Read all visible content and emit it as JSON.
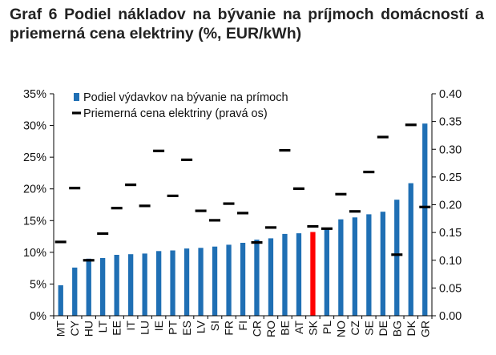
{
  "chart_data": {
    "type": "bar",
    "title": "Graf 6 Podiel nákladov na bývanie na príjmoch domácností a priemerná cena elektriny (%, EUR/kWh)",
    "categories": [
      "MT",
      "CY",
      "HU",
      "LT",
      "EE",
      "IT",
      "LU",
      "IE",
      "PT",
      "ES",
      "LV",
      "SI",
      "FR",
      "FI",
      "CR",
      "RO",
      "BE",
      "AT",
      "SK",
      "PL",
      "NO",
      "CZ",
      "SE",
      "DE",
      "BG",
      "DK",
      "GR"
    ],
    "series": [
      {
        "name": "Podiel výdavkov na bývanie na prímoch",
        "type": "bar",
        "axis": "left",
        "color": "#1f6fb4",
        "values": [
          4.8,
          7.6,
          9.0,
          9.1,
          9.6,
          9.7,
          9.8,
          10.2,
          10.3,
          10.6,
          10.7,
          10.9,
          11.2,
          11.5,
          12.0,
          12.2,
          12.9,
          13.0,
          13.2,
          13.9,
          15.2,
          15.5,
          16.0,
          16.4,
          18.3,
          20.9,
          30.3
        ]
      },
      {
        "name": "Priemerná cena elektriny (pravá os)",
        "type": "marker",
        "axis": "right",
        "color": "#000000",
        "values": [
          0.133,
          0.23,
          0.1,
          0.148,
          0.194,
          0.236,
          0.198,
          0.297,
          0.216,
          0.281,
          0.189,
          0.172,
          0.202,
          0.185,
          0.132,
          0.159,
          0.298,
          0.229,
          0.161,
          0.157,
          0.219,
          0.188,
          0.259,
          0.322,
          0.11,
          0.344,
          0.196
        ]
      }
    ],
    "highlight": {
      "category": "SK",
      "color": "#ff0000"
    },
    "y_left": {
      "min": 0,
      "max": 35,
      "ticks": [
        "0%",
        "5%",
        "10%",
        "15%",
        "20%",
        "25%",
        "30%",
        "35%"
      ]
    },
    "y_right": {
      "min": 0,
      "max": 0.4,
      "ticks": [
        "0.00",
        "0.05",
        "0.10",
        "0.15",
        "0.20",
        "0.25",
        "0.30",
        "0.35",
        "0.40"
      ]
    },
    "legend_position": "top-left",
    "grid": false
  }
}
